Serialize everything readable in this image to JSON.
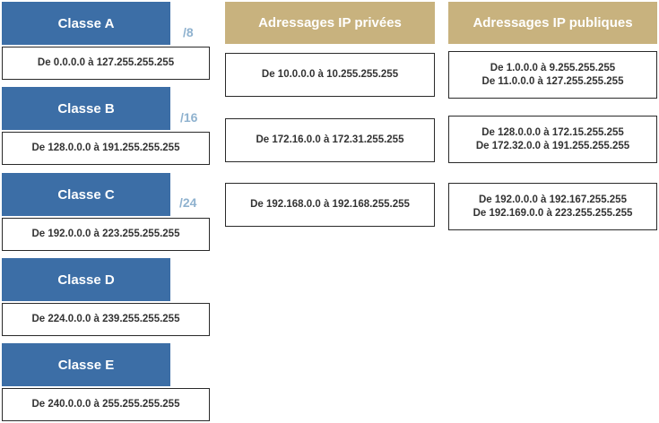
{
  "classes": [
    {
      "label": "Classe A",
      "cidr": "/8",
      "range": "De 0.0.0.0 à 127.255.255.255"
    },
    {
      "label": "Classe B",
      "cidr": "/16",
      "range": "De 128.0.0.0 à 191.255.255.255"
    },
    {
      "label": "Classe C",
      "cidr": "/24",
      "range": "De 192.0.0.0 à 223.255.255.255"
    },
    {
      "label": "Classe D",
      "cidr": "",
      "range": "De 224.0.0.0 à 239.255.255.255"
    },
    {
      "label": "Classe E",
      "cidr": "",
      "range": "De 240.0.0.0 à 255.255.255.255"
    }
  ],
  "private": {
    "title": "Adressages IP privées",
    "ranges": [
      "De 10.0.0.0 à 10.255.255.255",
      "De 172.16.0.0 à 172.31.255.255",
      "De 192.168.0.0 à 192.168.255.255"
    ]
  },
  "public": {
    "title": "Adressages IP publiques",
    "ranges": [
      [
        "De 1.0.0.0 à 9.255.255.255",
        "De 11.0.0.0 à 127.255.255.255"
      ],
      [
        "De 128.0.0.0 à 172.15.255.255",
        "De 172.32.0.0 à 191.255.255.255"
      ],
      [
        "De 192.0.0.0 à 192.167.255.255",
        "De 192.169.0.0 à 223.255.255.255"
      ]
    ]
  },
  "colors": {
    "class_header": "#3c6ea6",
    "cidr_text": "#8fb2cf",
    "gold_header": "#c8b27e",
    "box_border": "#2a2a2a"
  }
}
